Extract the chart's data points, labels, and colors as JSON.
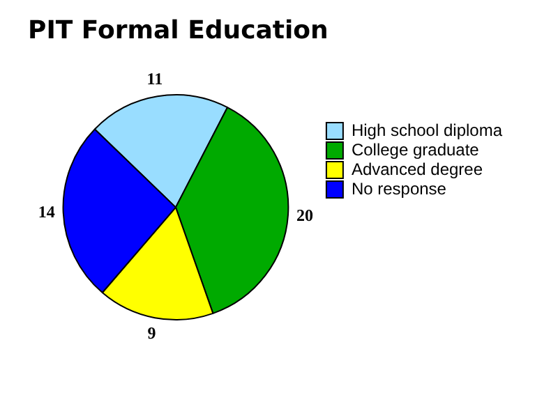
{
  "chart_data": {
    "type": "pie",
    "title": "PIT Formal Education",
    "categories": [
      "High school diploma",
      "College graduate",
      "Advanced degree",
      "No response"
    ],
    "values": [
      11,
      20,
      9,
      14
    ],
    "colors": [
      "#99ddff",
      "#00aa00",
      "#ffff00",
      "#0000ff"
    ],
    "data_labels": true,
    "legend": "right"
  }
}
